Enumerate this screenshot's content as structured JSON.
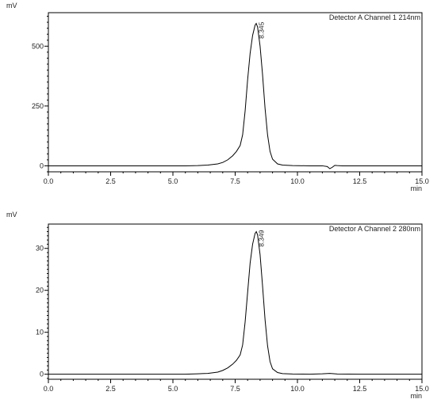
{
  "chart_data": [
    {
      "type": "line",
      "detector_label": "Detector A Channel 1 214nm",
      "ylabel": "mV",
      "xlabel": "min",
      "xlim": [
        0.0,
        15.0
      ],
      "ylim": [
        -25,
        640
      ],
      "x_ticks": [
        0.0,
        2.5,
        5.0,
        7.5,
        10.0,
        12.5,
        15.0
      ],
      "x_tick_labels": [
        "0.0",
        "2.5",
        "5.0",
        "7.5",
        "10.0",
        "12.5",
        "15.0"
      ],
      "y_ticks": [
        0,
        250,
        500
      ],
      "y_tick_labels": [
        "0",
        "250",
        "500"
      ],
      "peak_label": "8.345",
      "series": [
        {
          "x": [
            0.0,
            5.5,
            6.0,
            6.4,
            6.8,
            7.0,
            7.2,
            7.4,
            7.55,
            7.7,
            7.8,
            7.9,
            8.0,
            8.1,
            8.2,
            8.3,
            8.345,
            8.4,
            8.5,
            8.6,
            8.7,
            8.8,
            8.9,
            9.0,
            9.2,
            9.4,
            9.8,
            10.5,
            11.0,
            11.2,
            11.3,
            11.4,
            11.5,
            11.6,
            11.8,
            12.5,
            15.0
          ],
          "y": [
            0,
            0,
            1,
            3,
            8,
            14,
            25,
            42,
            60,
            85,
            130,
            230,
            360,
            470,
            545,
            588,
            595,
            580,
            500,
            380,
            240,
            130,
            60,
            28,
            8,
            3,
            1,
            0,
            0,
            -3,
            -12,
            -6,
            2,
            1,
            0,
            0,
            0
          ]
        }
      ]
    },
    {
      "type": "line",
      "detector_label": "Detector A Channel 2 280nm",
      "ylabel": "mV",
      "xlabel": "min",
      "xlim": [
        0.0,
        15.0
      ],
      "ylim": [
        -1.2,
        35.8
      ],
      "x_ticks": [
        0.0,
        2.5,
        5.0,
        7.5,
        10.0,
        12.5,
        15.0
      ],
      "x_tick_labels": [
        "0.0",
        "2.5",
        "5.0",
        "7.5",
        "10.0",
        "12.5",
        "15.0"
      ],
      "y_ticks": [
        0,
        10,
        20,
        30
      ],
      "y_tick_labels": [
        "0",
        "10",
        "20",
        "30"
      ],
      "peak_label": "8.349",
      "series": [
        {
          "x": [
            0.0,
            5.5,
            6.0,
            6.4,
            6.8,
            7.0,
            7.2,
            7.4,
            7.55,
            7.7,
            7.8,
            7.9,
            8.0,
            8.1,
            8.2,
            8.3,
            8.349,
            8.4,
            8.5,
            8.6,
            8.7,
            8.8,
            8.9,
            9.0,
            9.2,
            9.4,
            9.8,
            10.5,
            11.0,
            11.3,
            11.6,
            12.5,
            15.0
          ],
          "y": [
            0,
            0,
            0.1,
            0.2,
            0.5,
            0.9,
            1.5,
            2.4,
            3.3,
            4.6,
            7.0,
            12.5,
            19.5,
            26.5,
            31.0,
            33.6,
            34.0,
            33.2,
            28.5,
            21.0,
            13.0,
            6.8,
            3.0,
            1.3,
            0.4,
            0.15,
            0.05,
            0,
            0.1,
            0.2,
            0.05,
            0,
            0
          ]
        }
      ]
    }
  ]
}
